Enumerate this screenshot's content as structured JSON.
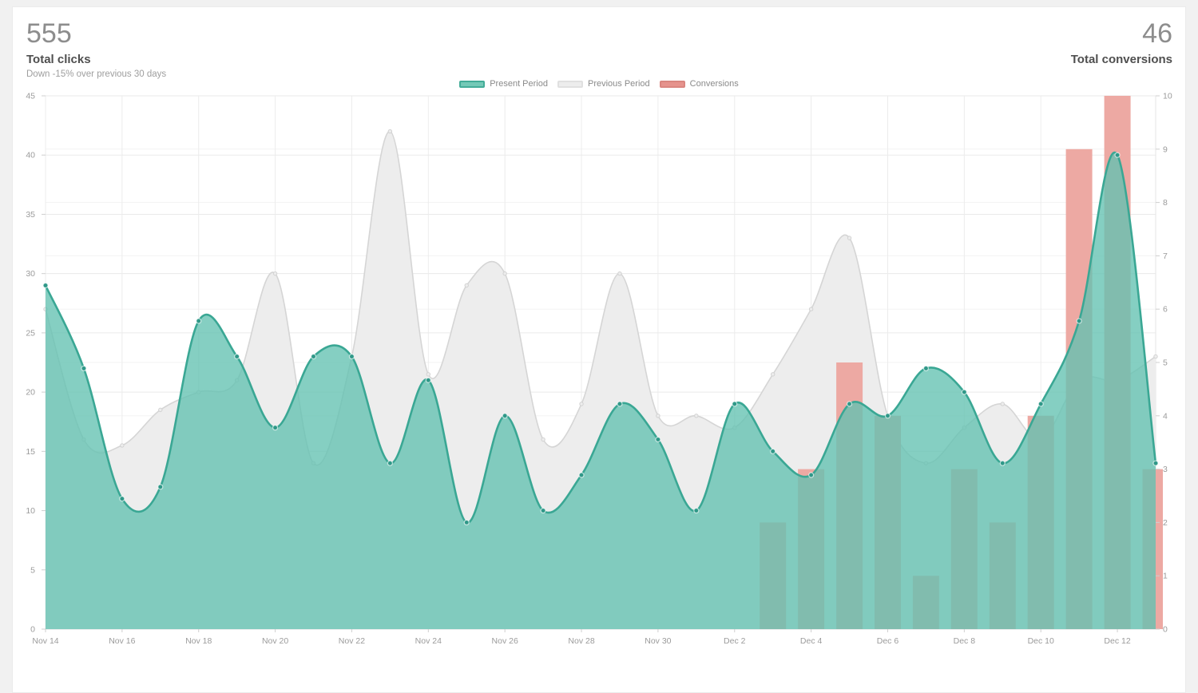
{
  "page": {
    "background": "#f1f1f1",
    "card_background": "#ffffff"
  },
  "header": {
    "left": {
      "value": "555",
      "label": "Total clicks",
      "subtitle": "Down -15% over previous 30 days"
    },
    "right": {
      "value": "46",
      "label": "Total conversions"
    }
  },
  "legend": [
    {
      "label": "Present Period",
      "fill": "#74c9b7",
      "border": "#43ac98"
    },
    {
      "label": "Previous Period",
      "fill": "#ededed",
      "border": "#e0e0e0"
    },
    {
      "label": "Conversions",
      "fill": "#e6938d",
      "border": "#da8680"
    }
  ],
  "chart_data": {
    "type": "mixed",
    "x": [
      "Nov 14",
      "Nov 15",
      "Nov 16",
      "Nov 17",
      "Nov 18",
      "Nov 19",
      "Nov 20",
      "Nov 21",
      "Nov 22",
      "Nov 23",
      "Nov 24",
      "Nov 25",
      "Nov 26",
      "Nov 27",
      "Nov 28",
      "Nov 29",
      "Nov 30",
      "Dec 1",
      "Dec 2",
      "Dec 3",
      "Dec 4",
      "Dec 5",
      "Dec 6",
      "Dec 7",
      "Dec 8",
      "Dec 9",
      "Dec 10",
      "Dec 11",
      "Dec 12",
      "Dec 13"
    ],
    "x_tick_labels": [
      "Nov 14",
      "Nov 16",
      "Nov 18",
      "Nov 20",
      "Nov 22",
      "Nov 24",
      "Nov 26",
      "Nov 28",
      "Nov 30",
      "Dec 2",
      "Dec 4",
      "Dec 6",
      "Dec 8",
      "Dec 10",
      "Dec 12"
    ],
    "series": [
      {
        "name": "Present Period",
        "type": "area-spline",
        "axis": "left",
        "line_color": "#3aa794",
        "fill_color": "rgba(99,194,177,0.78)",
        "point_color": "#2f9888",
        "values": [
          29,
          22,
          11,
          12,
          26,
          23,
          17,
          23,
          23,
          14,
          21,
          9,
          18,
          10,
          13,
          19,
          16,
          10,
          19,
          15,
          13,
          19,
          18,
          22,
          20,
          14,
          19,
          26,
          40,
          14
        ]
      },
      {
        "name": "Previous Period",
        "type": "area-spline",
        "axis": "left",
        "line_color": "#d5d5d5",
        "fill_color": "#ededed",
        "point_color": "#e5e5e5",
        "values": [
          27,
          16,
          15.5,
          18.5,
          20,
          21,
          30,
          14,
          23,
          42,
          21.5,
          29,
          30,
          16,
          19,
          30,
          18,
          18,
          17,
          21.5,
          27,
          33,
          18,
          14,
          17,
          19,
          16,
          21,
          21,
          23
        ]
      },
      {
        "name": "Conversions",
        "type": "bar",
        "axis": "right",
        "fill_color": "#eda9a3",
        "values": [
          0,
          0,
          0,
          0,
          0,
          0,
          0,
          0,
          0,
          0,
          0,
          0,
          0,
          0,
          0,
          0,
          0,
          0,
          0,
          2,
          3,
          5,
          4,
          1,
          3,
          2,
          4,
          9,
          10,
          3
        ]
      }
    ],
    "left_axis": {
      "min": 0,
      "max": 45,
      "step": 5
    },
    "right_axis": {
      "min": 0,
      "max": 10,
      "step": 1
    },
    "totals": {
      "total_clicks": 555,
      "total_conversions": 46
    },
    "legend_position": "top-center",
    "grid": true
  }
}
